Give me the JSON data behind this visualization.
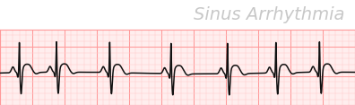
{
  "title": "Sinus Arrhythmia",
  "title_color": "#c8c8c8",
  "title_fontsize": 14,
  "bg_color": "#ffffff",
  "grid_bg_color": "#ffeeee",
  "grid_major_color": "#ff9999",
  "grid_minor_color": "#ffcccc",
  "ecg_color": "#111111",
  "ecg_linewidth": 1.1,
  "figsize": [
    3.96,
    1.17
  ],
  "dpi": 100,
  "beat_times": [
    0.6,
    1.75,
    3.4,
    5.3,
    7.05,
    8.55,
    9.9
  ],
  "ylim": [
    -0.55,
    0.75
  ],
  "xlim": [
    0,
    11.0
  ]
}
